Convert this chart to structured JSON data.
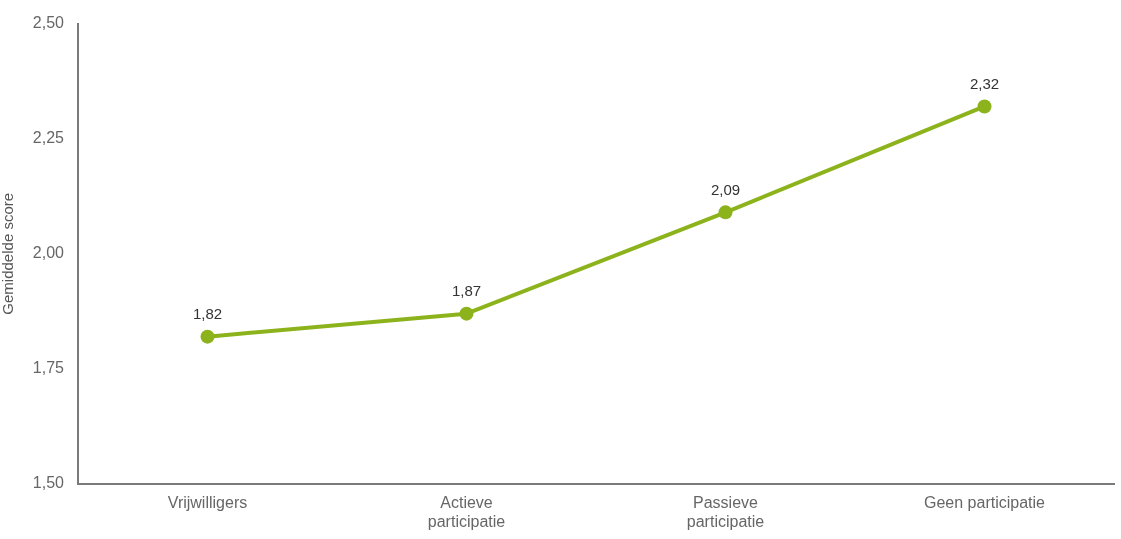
{
  "chart_data": {
    "type": "line",
    "ylabel": "Gemiddelde score",
    "categories": [
      "Vrijwilligers",
      "Actieve\nparticipatie",
      "Passieve\nparticipatie",
      "Geen participatie"
    ],
    "values": [
      1.82,
      1.87,
      2.09,
      2.32
    ],
    "value_labels": [
      "1,82",
      "1,87",
      "2,09",
      "2,32"
    ],
    "color": "#8db31c",
    "ylim": [
      1.5,
      2.5
    ],
    "yticks": [
      {
        "value": 1.5,
        "label": "1,50"
      },
      {
        "value": 1.75,
        "label": "1,75"
      },
      {
        "value": 2.0,
        "label": "2,00"
      },
      {
        "value": 2.25,
        "label": "2,25"
      },
      {
        "value": 2.5,
        "label": "2,50"
      }
    ],
    "grid": false,
    "legend": false,
    "marker": "circle",
    "line_style": "solid"
  }
}
